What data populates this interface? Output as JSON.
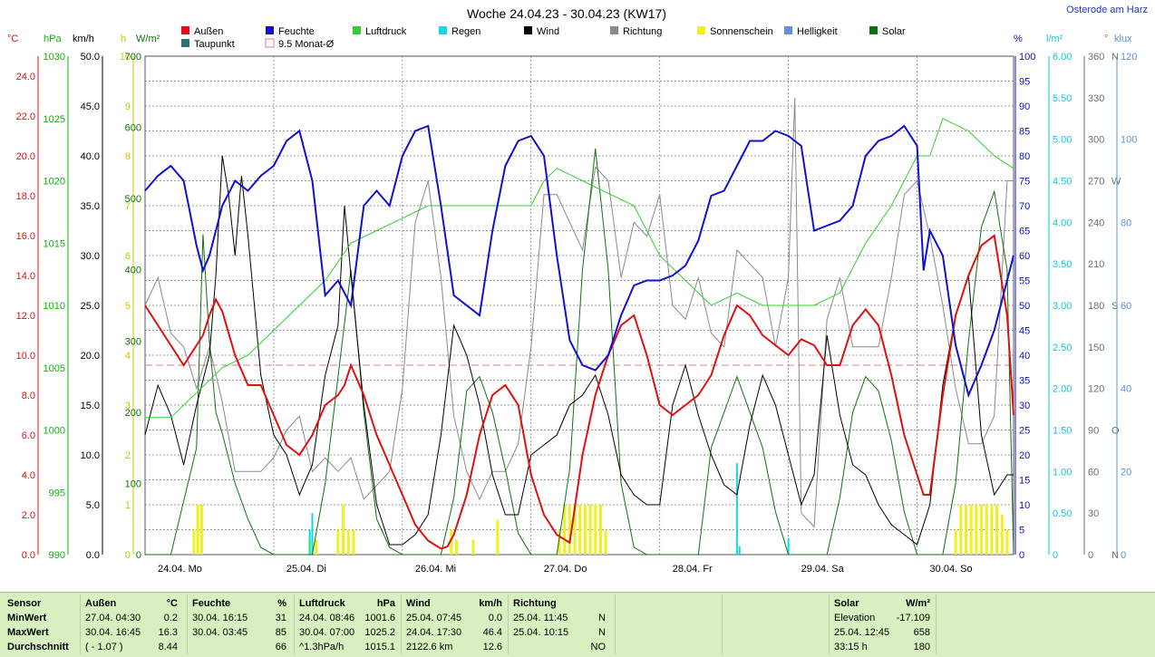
{
  "title": "Woche 24.04.23 - 30.04.23 (KW17)",
  "station": "Osterode am Harz",
  "legend": [
    {
      "label": "Außen",
      "color": "#e01010"
    },
    {
      "label": "Feuchte",
      "color": "#1010d0"
    },
    {
      "label": "Luftdruck",
      "color": "#30d030"
    },
    {
      "label": "Regen",
      "color": "#10d8e8"
    },
    {
      "label": "Wind",
      "color": "#000000"
    },
    {
      "label": "Richtung",
      "color": "#8a8a8a"
    },
    {
      "label": "Sonnenschein",
      "color": "#f0f020"
    },
    {
      "label": "Helligkeit",
      "color": "#6090e0"
    },
    {
      "label": "Solar",
      "color": "#107010"
    },
    {
      "label": "Taupunkt",
      "color": "#307070"
    },
    {
      "label": "9.5 Monat-Ø",
      "color": "#e08080"
    }
  ],
  "axes": {
    "temp": {
      "unit": "°C",
      "color": "#e01010",
      "ticks": [
        "0.0",
        "2.0",
        "4.0",
        "6.0",
        "8.0",
        "10.0",
        "12.0",
        "14.0",
        "16.0",
        "18.0",
        "20.0",
        "22.0",
        "24.0"
      ]
    },
    "press": {
      "unit": "hPa",
      "color": "#10b010",
      "ticks": [
        "990",
        "995",
        "1000",
        "1005",
        "1010",
        "1015",
        "1020",
        "1025",
        "1030"
      ]
    },
    "wind": {
      "unit": "km/h",
      "color": "#000000",
      "ticks": [
        "0.0",
        "5.0",
        "10.0",
        "15.0",
        "20.0",
        "25.0",
        "30.0",
        "35.0",
        "40.0",
        "45.0",
        "50.0"
      ]
    },
    "sun": {
      "unit": "h",
      "color": "#c8c800",
      "ticks": [
        "0",
        "1",
        "2",
        "3",
        "4",
        "5",
        "6",
        "7",
        "8",
        "9",
        "10"
      ]
    },
    "solar": {
      "unit": "W/m²",
      "color": "#107010",
      "ticks": [
        "0",
        "100",
        "200",
        "300",
        "400",
        "500",
        "600",
        "700"
      ]
    },
    "hum": {
      "unit": "%",
      "color": "#1010c0",
      "ticks": [
        "0",
        "5",
        "10",
        "15",
        "20",
        "25",
        "30",
        "35",
        "40",
        "45",
        "50",
        "55",
        "60",
        "65",
        "70",
        "75",
        "80",
        "85",
        "90",
        "95",
        "100"
      ]
    },
    "rain": {
      "unit": "l/m²",
      "color": "#10c8d8",
      "ticks": [
        "0",
        "0.50",
        "1.00",
        "1.50",
        "2.00",
        "2.50",
        "3.00",
        "3.50",
        "4.00",
        "4.50",
        "5.00",
        "5.50",
        "6.00"
      ]
    },
    "dir": {
      "unit": "°",
      "color": "#707070",
      "ticks": [
        "0",
        "30",
        "60",
        "90",
        "120",
        "150",
        "180",
        "210",
        "240",
        "270",
        "300",
        "330",
        "360"
      ],
      "dirlabels": [
        "N",
        "",
        "",
        "O",
        "",
        "",
        "S",
        "",
        "",
        "W",
        "",
        "",
        "N"
      ]
    },
    "lux": {
      "unit": "klux",
      "color": "#6090e0",
      "ticks": [
        "0",
        "20",
        "40",
        "60",
        "80",
        "100",
        "120"
      ]
    }
  },
  "days": [
    "24.04.  Mo",
    "25.04.  Di",
    "26.04.  Mi",
    "27.04.  Do",
    "28.04.  Fr",
    "29.04.  Sa",
    "30.04.  So"
  ],
  "chart_data": {
    "type": "line",
    "x_unit": "day index (0 = 24.04. 00:00)",
    "month_avg_temp": 9.5,
    "series": [
      {
        "name": "Außen",
        "axis": "temp",
        "color": "#e01010",
        "x": [
          0,
          0.1,
          0.2,
          0.3,
          0.4,
          0.45,
          0.5,
          0.55,
          0.6,
          0.7,
          0.8,
          0.9,
          1,
          1.1,
          1.2,
          1.3,
          1.4,
          1.5,
          1.55,
          1.6,
          1.7,
          1.8,
          1.9,
          2,
          2.1,
          2.2,
          2.3,
          2.35,
          2.4,
          2.5,
          2.6,
          2.7,
          2.8,
          2.9,
          3,
          3.1,
          3.2,
          3.3,
          3.4,
          3.5,
          3.6,
          3.7,
          3.8,
          3.9,
          4,
          4.1,
          4.2,
          4.3,
          4.4,
          4.5,
          4.6,
          4.7,
          4.8,
          4.9,
          5,
          5.1,
          5.2,
          5.3,
          5.4,
          5.5,
          5.6,
          5.7,
          5.8,
          5.9,
          6,
          6.05,
          6.1,
          6.2,
          6.3,
          6.4,
          6.5,
          6.6,
          6.7,
          6.75
        ],
        "y": [
          12.5,
          11.5,
          10.5,
          9.5,
          10.5,
          11,
          12,
          12.8,
          12.2,
          10,
          8.5,
          8.5,
          7,
          5.5,
          5,
          6,
          7.5,
          8,
          8.5,
          9.5,
          8,
          6,
          4.5,
          3,
          1.5,
          0.7,
          0.3,
          0.4,
          1,
          3,
          6,
          8,
          8.5,
          7.5,
          4,
          2,
          1,
          0.6,
          5,
          8,
          10,
          11.5,
          12,
          10,
          7.5,
          7,
          7.5,
          8,
          9,
          11,
          12.5,
          12,
          11,
          10.5,
          10,
          10.8,
          10.5,
          9.5,
          9.5,
          11.5,
          12.3,
          11.5,
          9,
          6,
          4,
          3,
          3,
          8,
          12,
          14,
          15.5,
          16,
          12,
          7
        ]
      },
      {
        "name": "Feuchte",
        "axis": "hum",
        "color": "#1010d0",
        "x": [
          0,
          0.1,
          0.2,
          0.3,
          0.4,
          0.45,
          0.5,
          0.6,
          0.7,
          0.8,
          0.9,
          1,
          1.1,
          1.2,
          1.3,
          1.4,
          1.5,
          1.6,
          1.7,
          1.8,
          1.9,
          2,
          2.1,
          2.2,
          2.3,
          2.4,
          2.5,
          2.6,
          2.7,
          2.8,
          2.9,
          3,
          3.1,
          3.2,
          3.3,
          3.4,
          3.5,
          3.6,
          3.7,
          3.8,
          3.9,
          4,
          4.1,
          4.2,
          4.3,
          4.4,
          4.5,
          4.6,
          4.7,
          4.8,
          4.9,
          5,
          5.1,
          5.2,
          5.3,
          5.4,
          5.5,
          5.6,
          5.7,
          5.8,
          5.9,
          6,
          6.05,
          6.1,
          6.2,
          6.3,
          6.4,
          6.5,
          6.6,
          6.7,
          6.75
        ],
        "y": [
          73,
          76,
          78,
          75,
          62,
          57,
          60,
          70,
          75,
          73,
          76,
          78,
          83,
          85,
          75,
          52,
          55,
          50,
          70,
          73,
          70,
          80,
          85,
          86,
          70,
          52,
          50,
          48,
          65,
          78,
          83,
          84,
          80,
          60,
          43,
          38,
          37,
          40,
          48,
          54,
          55,
          55,
          56,
          58,
          63,
          72,
          73,
          78,
          83,
          83,
          85,
          84,
          82,
          65,
          66,
          67,
          70,
          80,
          83,
          84,
          86,
          82,
          57,
          65,
          60,
          42,
          32,
          38,
          45,
          55,
          60
        ]
      },
      {
        "name": "Luftdruck",
        "axis": "press",
        "color": "#30d030",
        "x": [
          0,
          0.2,
          0.4,
          0.6,
          0.8,
          1,
          1.2,
          1.4,
          1.6,
          1.8,
          2,
          2.2,
          2.4,
          2.6,
          2.8,
          3,
          3.1,
          3.2,
          3.4,
          3.6,
          3.8,
          4,
          4.2,
          4.4,
          4.6,
          4.8,
          5,
          5.2,
          5.4,
          5.6,
          5.8,
          6,
          6.1,
          6.2,
          6.4,
          6.6,
          6.75
        ],
        "y": [
          1001,
          1001,
          1003,
          1005,
          1006,
          1008,
          1010,
          1012,
          1015,
          1016,
          1017,
          1018,
          1018,
          1018,
          1018,
          1018,
          1020,
          1021,
          1020,
          1019,
          1018,
          1014,
          1012,
          1010,
          1011,
          1010,
          1010,
          1010,
          1011,
          1015,
          1018,
          1022,
          1022,
          1025,
          1024,
          1022,
          1021
        ]
      },
      {
        "name": "Wind",
        "axis": "wind",
        "color": "#000000",
        "x": [
          0,
          0.1,
          0.2,
          0.3,
          0.4,
          0.5,
          0.55,
          0.6,
          0.65,
          0.7,
          0.75,
          0.8,
          0.9,
          1,
          1.1,
          1.2,
          1.3,
          1.4,
          1.5,
          1.55,
          1.6,
          1.7,
          1.8,
          1.9,
          2,
          2.1,
          2.2,
          2.3,
          2.4,
          2.5,
          2.6,
          2.7,
          2.8,
          2.9,
          3,
          3.1,
          3.2,
          3.3,
          3.4,
          3.5,
          3.6,
          3.7,
          3.8,
          3.9,
          4,
          4.1,
          4.2,
          4.3,
          4.4,
          4.5,
          4.6,
          4.7,
          4.8,
          4.9,
          5,
          5.1,
          5.2,
          5.3,
          5.4,
          5.5,
          5.6,
          5.7,
          5.8,
          5.9,
          6,
          6.1,
          6.2,
          6.3,
          6.4,
          6.5,
          6.6,
          6.7,
          6.75
        ],
        "y": [
          12,
          17,
          14,
          9,
          15,
          20,
          28,
          40,
          36,
          30,
          38,
          32,
          18,
          12,
          10,
          6,
          9,
          18,
          23,
          35,
          28,
          15,
          5,
          1,
          1,
          2,
          4,
          12,
          23,
          20,
          15,
          8,
          4,
          4,
          10,
          11,
          12,
          15,
          16,
          18,
          14,
          8,
          6,
          5,
          5,
          15,
          19,
          14,
          10,
          7,
          6,
          13,
          18,
          15,
          10,
          5,
          8,
          22,
          14,
          9,
          8,
          5,
          3,
          2,
          1,
          5,
          17,
          24,
          28,
          12,
          6,
          8,
          8
        ]
      },
      {
        "name": "Solar",
        "axis": "solar",
        "color": "#107010",
        "x": [
          0,
          0.2,
          0.4,
          0.45,
          0.5,
          0.55,
          0.6,
          0.7,
          0.8,
          0.9,
          1,
          1.3,
          1.4,
          1.5,
          1.6,
          1.7,
          1.8,
          1.9,
          2,
          2.3,
          2.4,
          2.5,
          2.6,
          2.7,
          2.8,
          2.9,
          3,
          3.2,
          3.3,
          3.4,
          3.5,
          3.6,
          3.7,
          3.8,
          3.9,
          4,
          4.3,
          4.4,
          4.5,
          4.6,
          4.7,
          4.8,
          4.9,
          5,
          5.3,
          5.4,
          5.5,
          5.6,
          5.7,
          5.8,
          5.9,
          6,
          6.2,
          6.3,
          6.4,
          6.5,
          6.6,
          6.7,
          6.75
        ],
        "y": [
          0,
          0,
          150,
          450,
          300,
          200,
          170,
          100,
          50,
          10,
          0,
          0,
          100,
          250,
          400,
          200,
          50,
          10,
          0,
          0,
          80,
          230,
          250,
          200,
          120,
          30,
          0,
          0,
          120,
          400,
          570,
          400,
          100,
          10,
          0,
          0,
          0,
          150,
          200,
          250,
          200,
          150,
          60,
          0,
          0,
          80,
          200,
          250,
          230,
          160,
          60,
          0,
          0,
          100,
          300,
          460,
          510,
          400,
          0
        ]
      },
      {
        "name": "Richtung",
        "axis": "dir",
        "color": "#8a8a8a",
        "x": [
          0,
          0.1,
          0.2,
          0.3,
          0.4,
          0.5,
          0.6,
          0.7,
          0.8,
          0.9,
          1,
          1.1,
          1.2,
          1.3,
          1.4,
          1.5,
          1.6,
          1.7,
          1.8,
          1.9,
          2,
          2.1,
          2.2,
          2.3,
          2.4,
          2.5,
          2.6,
          2.7,
          2.8,
          2.9,
          3,
          3.1,
          3.2,
          3.3,
          3.4,
          3.5,
          3.6,
          3.7,
          3.8,
          3.9,
          4,
          4.1,
          4.2,
          4.3,
          4.4,
          4.5,
          4.6,
          4.7,
          4.8,
          4.9,
          5,
          5.05,
          5.1,
          5.2,
          5.3,
          5.4,
          5.5,
          5.6,
          5.7,
          5.8,
          5.9,
          6,
          6.1,
          6.2,
          6.3,
          6.4,
          6.5,
          6.6,
          6.7,
          6.75
        ],
        "y": [
          180,
          200,
          160,
          150,
          120,
          150,
          110,
          60,
          60,
          60,
          70,
          90,
          100,
          60,
          70,
          60,
          70,
          40,
          50,
          60,
          120,
          240,
          270,
          200,
          100,
          60,
          40,
          60,
          60,
          80,
          150,
          260,
          260,
          240,
          220,
          280,
          270,
          200,
          240,
          230,
          260,
          180,
          170,
          200,
          160,
          150,
          220,
          210,
          200,
          150,
          200,
          330,
          30,
          20,
          170,
          200,
          150,
          150,
          150,
          200,
          260,
          270,
          230,
          180,
          120,
          80,
          80,
          100,
          270,
          270
        ]
      }
    ],
    "sunshine_bars": [
      {
        "x": 0.38,
        "h": 0.5
      },
      {
        "x": 0.41,
        "h": 1.0
      },
      {
        "x": 0.44,
        "h": 1.0
      },
      {
        "x": 1.28,
        "h": 0.3
      },
      {
        "x": 1.33,
        "h": 0.3
      },
      {
        "x": 1.5,
        "h": 0.5
      },
      {
        "x": 1.54,
        "h": 1.0
      },
      {
        "x": 1.58,
        "h": 0.5
      },
      {
        "x": 1.62,
        "h": 0.5
      },
      {
        "x": 2.38,
        "h": 0.5
      },
      {
        "x": 2.42,
        "h": 0.3
      },
      {
        "x": 2.55,
        "h": 0.3
      },
      {
        "x": 2.74,
        "h": 0.7
      },
      {
        "x": 3.22,
        "h": 0.5
      },
      {
        "x": 3.26,
        "h": 1.0
      },
      {
        "x": 3.3,
        "h": 1.0
      },
      {
        "x": 3.34,
        "h": 1.0
      },
      {
        "x": 3.38,
        "h": 1.0
      },
      {
        "x": 3.42,
        "h": 1.0
      },
      {
        "x": 3.46,
        "h": 1.0
      },
      {
        "x": 3.5,
        "h": 1.0
      },
      {
        "x": 3.54,
        "h": 1.0
      },
      {
        "x": 3.58,
        "h": 0.5
      },
      {
        "x": 6.3,
        "h": 0.5
      },
      {
        "x": 6.34,
        "h": 1.0
      },
      {
        "x": 6.38,
        "h": 1.0
      },
      {
        "x": 6.42,
        "h": 1.0
      },
      {
        "x": 6.46,
        "h": 1.0
      },
      {
        "x": 6.5,
        "h": 1.0
      },
      {
        "x": 6.54,
        "h": 1.0
      },
      {
        "x": 6.58,
        "h": 1.0
      },
      {
        "x": 6.62,
        "h": 1.0
      },
      {
        "x": 6.66,
        "h": 0.8
      },
      {
        "x": 6.7,
        "h": 0.5
      }
    ],
    "rain_events": [
      {
        "x": 1.28,
        "v": 0.3
      },
      {
        "x": 1.3,
        "v": 0.5
      },
      {
        "x": 4.6,
        "v": 1.1
      },
      {
        "x": 4.62,
        "v": 0.1
      },
      {
        "x": 5.0,
        "v": 0.2
      }
    ]
  },
  "stats": {
    "sensor": {
      "header": "Sensor",
      "rows": [
        "MinWert",
        "MaxWert",
        "Durchschnitt"
      ]
    },
    "aussen": {
      "header": "Außen",
      "unit": "°C",
      "rows": [
        [
          "27.04.  04:30",
          "0.2"
        ],
        [
          "30.04.  16:45",
          "16.3"
        ],
        [
          "( - 1.07 )",
          "8.44"
        ]
      ]
    },
    "feuchte": {
      "header": "Feuchte",
      "unit": "%",
      "rows": [
        [
          "30.04.  16:15",
          "31"
        ],
        [
          "30.04.  03:45",
          "85"
        ],
        [
          "",
          "66"
        ]
      ]
    },
    "luftdruck": {
      "header": "Luftdruck",
      "unit": "hPa",
      "rows": [
        [
          "24.04.  08:46",
          "1001.6"
        ],
        [
          "30.04.  07:00",
          "1025.2"
        ],
        [
          "^1.3hPa/h",
          "1015.1"
        ]
      ]
    },
    "wind": {
      "header": "Wind",
      "unit": "km/h",
      "rows": [
        [
          "25.04.  07:45",
          "0.0"
        ],
        [
          "24.04.  17:30",
          "46.4"
        ],
        [
          "2122.6 km",
          "12.6"
        ]
      ]
    },
    "richtung": {
      "header": "Richtung",
      "unit": "",
      "rows": [
        [
          "25.04.  11:45",
          "N"
        ],
        [
          "25.04.  10:15",
          "N"
        ],
        [
          "",
          "NO"
        ]
      ]
    },
    "solar": {
      "header": "Solar",
      "unit": "W/m²",
      "rows": [
        [
          "Elevation",
          "-17.109"
        ],
        [
          "25.04.  12:45",
          "658"
        ],
        [
          "33:15 h",
          "180"
        ]
      ]
    }
  }
}
